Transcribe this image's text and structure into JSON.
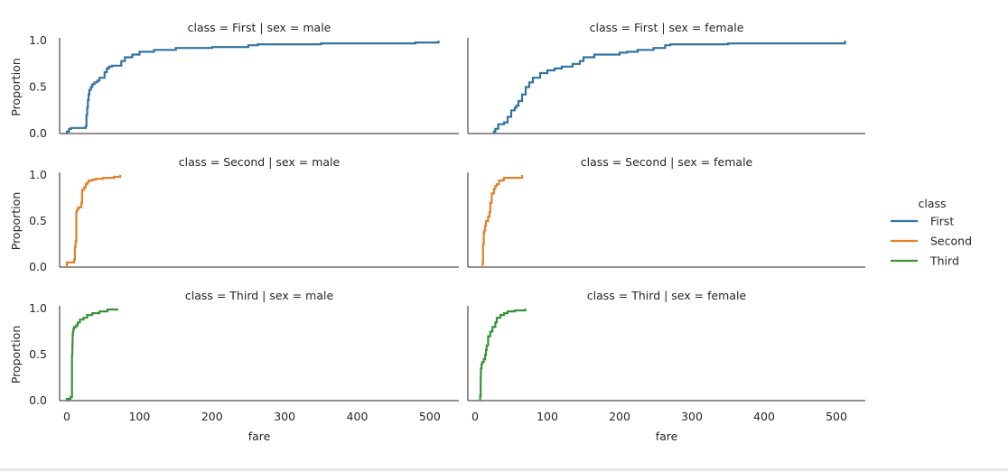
{
  "chart_data": {
    "type": "line",
    "subtype": "ecdf-facet-grid",
    "xlabel": "fare",
    "ylabel": "Proportion",
    "xlim": [
      -10,
      540
    ],
    "ylim": [
      0,
      1
    ],
    "xticks": [
      "0",
      "100",
      "200",
      "300",
      "400",
      "500"
    ],
    "xtick_values": [
      0,
      100,
      200,
      300,
      400,
      500
    ],
    "yticks": [
      "0.0",
      "0.5",
      "1.0"
    ],
    "ytick_values": [
      0,
      0.5,
      1.0
    ],
    "grid": false,
    "legend": {
      "title": "class",
      "placement": "right",
      "entries": [
        "First",
        "Second",
        "Third"
      ]
    },
    "colors": {
      "First": "#3274a1",
      "Second": "#e1812c",
      "Third": "#3a923a"
    },
    "panels": [
      {
        "title": "class = First | sex = male",
        "series": "First",
        "x": [
          0,
          3,
          6,
          26,
          27,
          28,
          29,
          30,
          31,
          33,
          35,
          38,
          42,
          45,
          52,
          55,
          58,
          62,
          75,
          80,
          90,
          100,
          120,
          150,
          200,
          250,
          263,
          350,
          480,
          512
        ],
        "y": [
          0.02,
          0.05,
          0.06,
          0.08,
          0.2,
          0.28,
          0.36,
          0.42,
          0.47,
          0.5,
          0.53,
          0.55,
          0.57,
          0.6,
          0.66,
          0.7,
          0.72,
          0.73,
          0.78,
          0.82,
          0.85,
          0.88,
          0.9,
          0.92,
          0.93,
          0.95,
          0.96,
          0.97,
          0.98,
          1.0
        ]
      },
      {
        "title": "class = First | sex = female",
        "series": "First",
        "x": [
          26,
          28,
          32,
          40,
          45,
          50,
          55,
          57,
          60,
          65,
          70,
          75,
          80,
          90,
          100,
          110,
          120,
          135,
          145,
          150,
          165,
          200,
          210,
          225,
          247,
          263,
          270,
          350,
          512
        ],
        "y": [
          0.02,
          0.05,
          0.1,
          0.12,
          0.18,
          0.25,
          0.28,
          0.3,
          0.35,
          0.42,
          0.5,
          0.55,
          0.6,
          0.65,
          0.68,
          0.7,
          0.72,
          0.75,
          0.78,
          0.82,
          0.85,
          0.87,
          0.88,
          0.9,
          0.92,
          0.95,
          0.96,
          0.97,
          1.0
        ]
      },
      {
        "title": "class = Second | sex = male",
        "series": "Second",
        "x": [
          0,
          10,
          11,
          12,
          13,
          14,
          15,
          16,
          20,
          21,
          24,
          26,
          28,
          30,
          35,
          40,
          50,
          65,
          73.5
        ],
        "y": [
          0.05,
          0.08,
          0.22,
          0.28,
          0.6,
          0.62,
          0.63,
          0.65,
          0.7,
          0.84,
          0.87,
          0.9,
          0.92,
          0.94,
          0.95,
          0.96,
          0.97,
          0.98,
          1.0
        ]
      },
      {
        "title": "class = Second | sex = female",
        "series": "Second",
        "x": [
          10.5,
          11,
          12,
          13,
          14,
          15,
          18,
          20,
          21,
          23,
          26,
          28,
          30,
          33,
          39,
          40,
          65
        ],
        "y": [
          0.05,
          0.25,
          0.38,
          0.4,
          0.45,
          0.5,
          0.55,
          0.6,
          0.7,
          0.8,
          0.85,
          0.88,
          0.9,
          0.94,
          0.95,
          0.97,
          1.0
        ]
      },
      {
        "title": "class = Third | sex = male",
        "series": "Third",
        "x": [
          0,
          5,
          7,
          7.5,
          7.8,
          8,
          8.5,
          9,
          10,
          13,
          15,
          18,
          23,
          28,
          35,
          45,
          56,
          69.5
        ],
        "y": [
          0.02,
          0.04,
          0.5,
          0.6,
          0.65,
          0.72,
          0.75,
          0.78,
          0.8,
          0.82,
          0.85,
          0.88,
          0.9,
          0.93,
          0.95,
          0.97,
          0.99,
          1.0
        ]
      },
      {
        "title": "class = Third | sex = female",
        "series": "Third",
        "x": [
          7,
          7.7,
          8,
          9,
          10,
          12,
          14,
          15,
          16,
          18,
          21,
          24,
          28,
          30,
          35,
          40,
          45,
          55,
          69.5
        ],
        "y": [
          0.05,
          0.25,
          0.35,
          0.4,
          0.42,
          0.45,
          0.5,
          0.55,
          0.6,
          0.7,
          0.75,
          0.8,
          0.85,
          0.9,
          0.93,
          0.95,
          0.97,
          0.98,
          1.0
        ]
      }
    ]
  }
}
